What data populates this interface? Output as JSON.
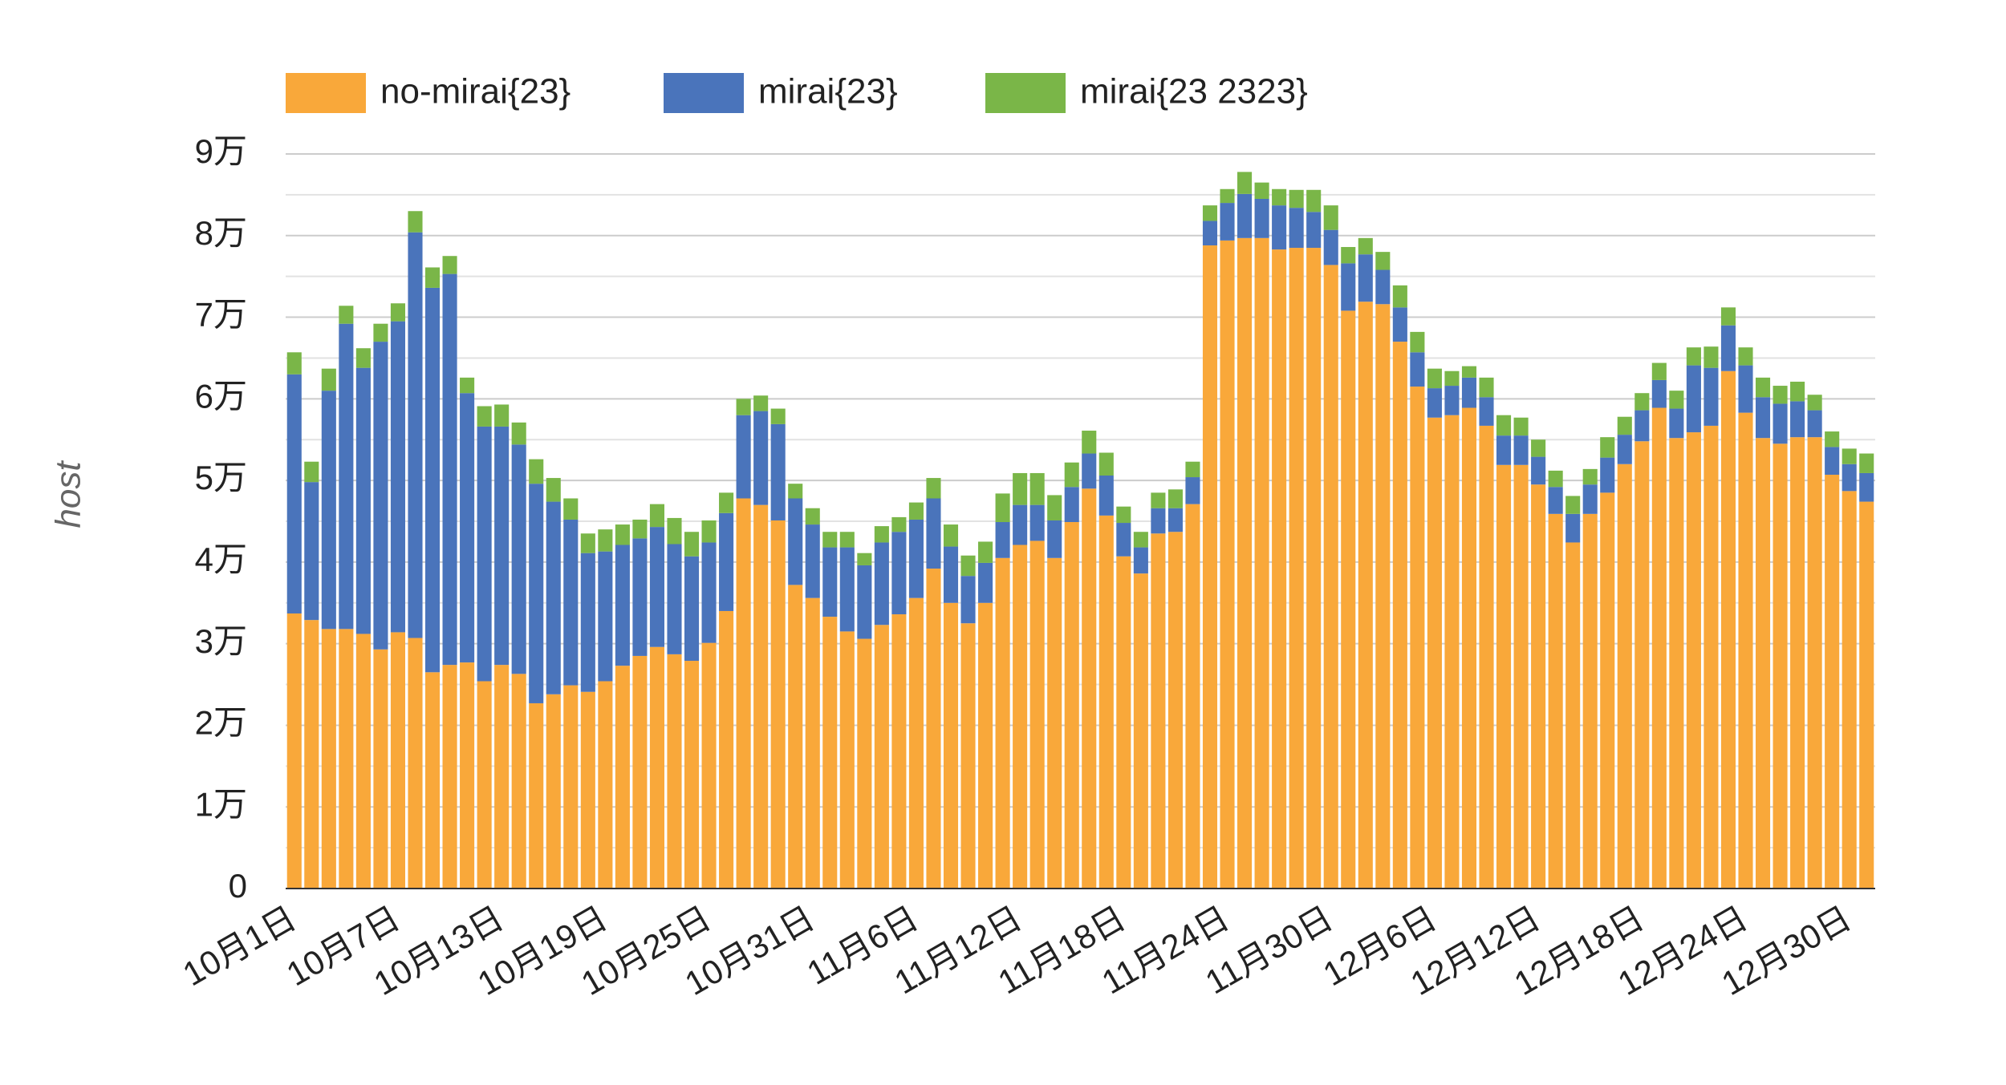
{
  "chart_data": {
    "type": "stacked_bar",
    "y_label": "host",
    "legend": "top",
    "grid": true,
    "categories": [
      "10月1日",
      null,
      null,
      null,
      null,
      null,
      "10月7日",
      null,
      null,
      null,
      null,
      null,
      "10月13日",
      null,
      null,
      null,
      null,
      null,
      "10月19日",
      null,
      null,
      null,
      null,
      null,
      "10月25日",
      null,
      null,
      null,
      null,
      null,
      "10月31日",
      null,
      null,
      null,
      null,
      null,
      "11月6日",
      null,
      null,
      null,
      null,
      null,
      "11月12日",
      null,
      null,
      null,
      null,
      null,
      "11月18日",
      null,
      null,
      null,
      null,
      null,
      "11月24日",
      null,
      null,
      null,
      null,
      null,
      "11月30日",
      null,
      null,
      null,
      null,
      null,
      "12月6日",
      null,
      null,
      null,
      null,
      null,
      "12月12日",
      null,
      null,
      null,
      null,
      null,
      "12月18日",
      null,
      null,
      null,
      null,
      null,
      "12月24日",
      null,
      null,
      null,
      null,
      null,
      "12月30日",
      null
    ],
    "series": [
      {
        "name": "no-mirai{23}",
        "color": "#f9a83a",
        "values": [
          33700,
          32900,
          31800,
          31800,
          31200,
          29300,
          31400,
          30700,
          26500,
          27400,
          27700,
          25400,
          27400,
          26300,
          22700,
          23800,
          24900,
          24100,
          25400,
          27300,
          28500,
          29600,
          28700,
          27900,
          30100,
          34000,
          47800,
          47000,
          45100,
          37200,
          35600,
          33300,
          31500,
          30600,
          32300,
          33600,
          35600,
          39200,
          35000,
          32500,
          35000,
          40500,
          42100,
          42600,
          40500,
          44900,
          49000,
          45700,
          40700,
          38600,
          43500,
          43700,
          47100,
          78800,
          79400,
          79700,
          79700,
          78300,
          78500,
          78500,
          76400,
          70800,
          71900,
          71600,
          67000,
          61500,
          57700,
          58000,
          58900,
          56700,
          51900,
          51900,
          49500,
          45900,
          42400,
          45900,
          48500,
          52000,
          54800,
          58900,
          55200,
          55900,
          56700,
          63400,
          58300,
          55200,
          54500,
          55300,
          55300,
          50700,
          48700,
          47400
        ]
      },
      {
        "name": "mirai{23}",
        "color": "#4a74bb",
        "values": [
          29300,
          16900,
          29200,
          37400,
          32600,
          37700,
          38100,
          49700,
          47100,
          47900,
          33000,
          31200,
          29200,
          28100,
          26900,
          23600,
          20300,
          17000,
          15900,
          14800,
          14400,
          14700,
          13500,
          12800,
          12300,
          12000,
          10200,
          11500,
          11800,
          10600,
          9000,
          8500,
          10300,
          9000,
          10100,
          10100,
          9600,
          8600,
          6900,
          5800,
          4900,
          4400,
          4900,
          4400,
          4600,
          4300,
          4300,
          4900,
          4100,
          3200,
          3100,
          2900,
          3300,
          3000,
          4600,
          5400,
          4800,
          5400,
          4900,
          4400,
          4300,
          5800,
          5800,
          4200,
          4200,
          4200,
          3600,
          3600,
          3700,
          3500,
          3600,
          3600,
          3400,
          3300,
          3500,
          3600,
          4300,
          3600,
          3800,
          3400,
          3600,
          8200,
          7100,
          5600,
          5800,
          5000,
          4900,
          4400,
          3300,
          3400,
          3300,
          3500
        ]
      },
      {
        "name": "mirai{23 2323}",
        "color": "#7ab648",
        "values": [
          2700,
          2500,
          2700,
          2200,
          2400,
          2200,
          2200,
          2600,
          2500,
          2200,
          1900,
          2500,
          2700,
          2700,
          3000,
          2900,
          2600,
          2400,
          2700,
          2500,
          2300,
          2800,
          3200,
          3000,
          2700,
          2500,
          2000,
          1900,
          1900,
          1800,
          2000,
          1900,
          1900,
          1500,
          2000,
          1800,
          2100,
          2500,
          2700,
          2500,
          2600,
          3500,
          3900,
          3900,
          3100,
          3000,
          2800,
          2800,
          2000,
          1900,
          1900,
          2300,
          1900,
          1900,
          1700,
          2700,
          2000,
          2000,
          2200,
          2700,
          3000,
          2000,
          2000,
          2200,
          2700,
          2500,
          2400,
          1800,
          1400,
          2400,
          2500,
          2200,
          2100,
          2000,
          2200,
          1900,
          2500,
          2200,
          2100,
          2100,
          2200,
          2200,
          2600,
          2200,
          2200,
          2400,
          2200,
          2400,
          1900,
          1900,
          1900,
          2400
        ]
      }
    ],
    "ylim": [
      0,
      90000
    ],
    "yticks": [
      0,
      {
        "value": 10000,
        "label": "1万"
      },
      {
        "value": 20000,
        "label": "2万"
      },
      {
        "value": 30000,
        "label": "3万"
      },
      {
        "value": 40000,
        "label": "4万"
      },
      {
        "value": 50000,
        "label": "5万"
      },
      {
        "value": 60000,
        "label": "6万"
      },
      {
        "value": 70000,
        "label": "7万"
      },
      {
        "value": 80000,
        "label": "8万"
      },
      {
        "value": 90000,
        "label": "9万"
      }
    ],
    "minor_yticks": [
      5000,
      15000,
      25000,
      35000,
      45000,
      55000,
      65000,
      75000,
      85000
    ]
  }
}
